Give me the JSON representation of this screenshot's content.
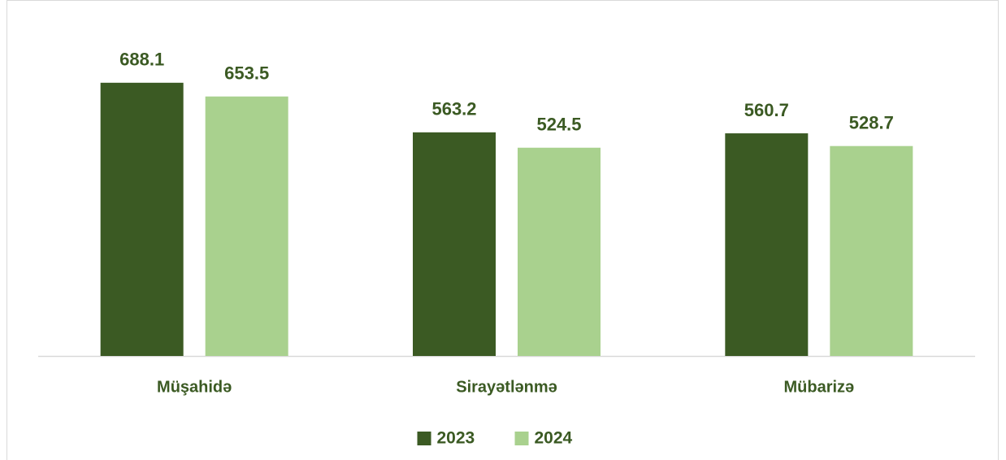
{
  "chart_data": {
    "type": "bar",
    "categories": [
      "Müşahidə",
      "Sirayətlənmə",
      "Mübarizə"
    ],
    "series": [
      {
        "name": "2023",
        "color": "#3b5a23",
        "values": [
          688.1,
          563.2,
          560.7
        ]
      },
      {
        "name": "2024",
        "color": "#a9d18e",
        "values": [
          653.5,
          524.5,
          528.7
        ]
      }
    ],
    "ylim": [
      0,
      700
    ],
    "legend": "bottom"
  }
}
